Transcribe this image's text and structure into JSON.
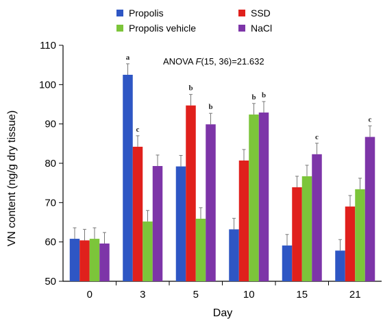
{
  "chart_data": {
    "type": "bar",
    "title": "",
    "xlabel": "Day",
    "ylabel": "VN content (ng/g dry tissue)",
    "ylim": [
      50,
      110
    ],
    "yticks": [
      50,
      60,
      70,
      80,
      90,
      100,
      110
    ],
    "categories": [
      "0",
      "3",
      "5",
      "10",
      "15",
      "21"
    ],
    "legend_position": "top",
    "annotation": {
      "prefix": "ANOVA ",
      "stat": "F",
      "suffix": "(15, 36)=21.632"
    },
    "series": [
      {
        "name": "Propolis",
        "color": "#2e56c4",
        "values": [
          60.8,
          102.5,
          79.2,
          63.2,
          59.1,
          57.8
        ],
        "errors": [
          2.8,
          2.8,
          2.8,
          2.8,
          2.8,
          2.8
        ],
        "labels": [
          "",
          "a",
          "",
          "",
          "",
          ""
        ]
      },
      {
        "name": "SSD",
        "color": "#e0201c",
        "values": [
          60.4,
          84.2,
          94.7,
          80.7,
          73.9,
          69.0
        ],
        "errors": [
          2.8,
          2.8,
          2.8,
          2.8,
          2.8,
          2.8
        ],
        "labels": [
          "",
          "c",
          "b",
          "",
          "",
          ""
        ]
      },
      {
        "name": "Propolis vehicle",
        "color": "#7cc53a",
        "values": [
          60.8,
          65.2,
          65.9,
          92.4,
          76.7,
          73.4
        ],
        "errors": [
          2.8,
          2.8,
          2.8,
          2.8,
          2.8,
          2.8
        ],
        "labels": [
          "",
          "",
          "",
          "b",
          "",
          ""
        ]
      },
      {
        "name": "NaCl",
        "color": "#7d35a8",
        "values": [
          59.6,
          79.3,
          89.9,
          92.9,
          82.3,
          86.7
        ],
        "errors": [
          2.8,
          2.8,
          2.8,
          2.8,
          2.8,
          2.8
        ],
        "labels": [
          "",
          "",
          "b",
          "b",
          "c",
          "c"
        ]
      }
    ]
  }
}
